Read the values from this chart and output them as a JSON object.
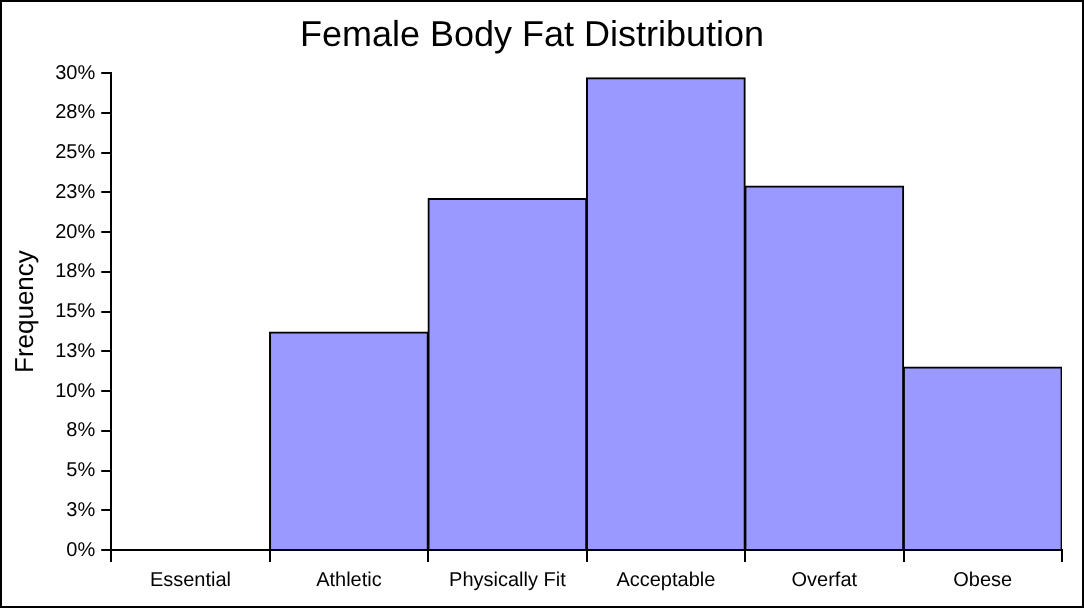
{
  "chart_data": {
    "type": "bar",
    "title": "Female Body Fat Distribution",
    "ylabel": "Frequency",
    "categories": [
      "Essential",
      "Athletic",
      "Physically Fit",
      "Acceptable",
      "Overfat",
      "Obese"
    ],
    "values": [
      0,
      13.7,
      22.1,
      29.7,
      22.9,
      11.5
    ],
    "color": "#9999ff",
    "ylim": [
      0,
      30
    ],
    "yticks": [
      {
        "value": 0,
        "label": "0%"
      },
      {
        "value": 2.5,
        "label": "3%"
      },
      {
        "value": 5,
        "label": "5%"
      },
      {
        "value": 7.5,
        "label": "8%"
      },
      {
        "value": 10,
        "label": "10%"
      },
      {
        "value": 12.5,
        "label": "13%"
      },
      {
        "value": 15,
        "label": "15%"
      },
      {
        "value": 17.5,
        "label": "18%"
      },
      {
        "value": 20,
        "label": "20%"
      },
      {
        "value": 22.5,
        "label": "23%"
      },
      {
        "value": 25,
        "label": "25%"
      },
      {
        "value": 27.5,
        "label": "28%"
      },
      {
        "value": 30,
        "label": "30%"
      }
    ],
    "grid": false,
    "legend": false
  }
}
